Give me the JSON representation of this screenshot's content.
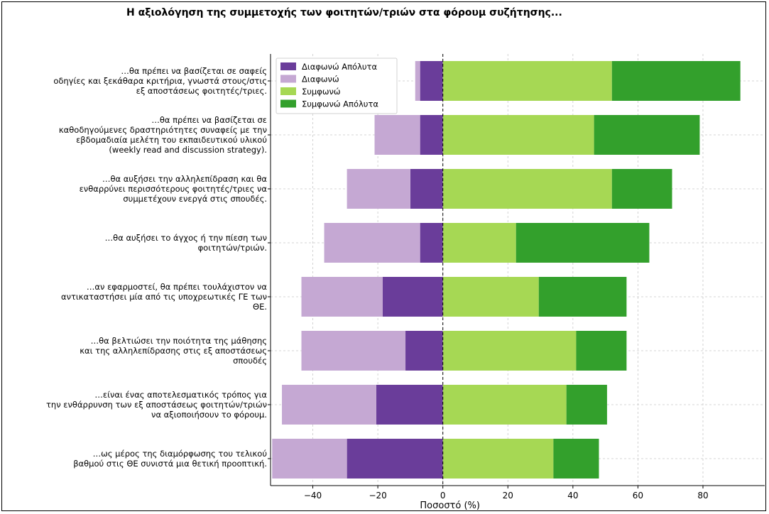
{
  "chart_data": {
    "type": "bar",
    "orientation": "horizontal",
    "stacked": "diverging",
    "title": "Η αξιολόγηση της συμμετοχής των φοιτητών/τριών στα φόρουμ συζήτησης...",
    "xlabel": "Ποσοστό (%)",
    "ylabel": "",
    "xlim": [
      -53,
      99
    ],
    "xticks": [
      -40,
      -20,
      0,
      20,
      40,
      60,
      80
    ],
    "xtick_labels": [
      "−40",
      "−20",
      "0",
      "20",
      "40",
      "60",
      "80"
    ],
    "grid": true,
    "legend_position": "top-left",
    "categories": [
      [
        "…θα πρέπει να   βασίζεται σε σαφείς",
        "οδηγίες και ξεκάθαρα κριτήρια, γνωστά στους/στις",
        "εξ αποστάσεως φοιτητές/τριες."
      ],
      [
        "…θα πρέπει να   βασίζεται σε",
        "καθοδηγούμενες δραστηριότητες συναφείς με την",
        "εβδομαδιαία μελέτη   του εκπαιδευτικού υλικού",
        "(weekly read and discussion strategy)."
      ],
      [
        "…θα αυξήσει   την αλληλεπίδραση και θα",
        "ενθαρρύνει περισσότερους φοιτητές/τριες να",
        "συμμετέχουν ενεργά στις σπουδές."
      ],
      [
        "…θα αυξήσει   το άγχος ή την πίεση των",
        "φοιτητών/τριών."
      ],
      [
        "…αν   εφαρμοστεί, θα πρέπει τουλάχιστον να",
        "αντικαταστήσει μία από τις υποχρεωτικές   ΓΕ των",
        "ΘΕ."
      ],
      [
        "…θα βελτιώσει   την ποιότητα της μάθησης",
        "και της αλληλεπίδρασης στις   εξ αποστάσεως",
        "σπουδές"
      ],
      [
        "…είναι ένας   αποτελεσματικός τρόπος για",
        "την ενθάρρυνση των εξ   αποστάσεως φοιτητών/τριών",
        "να αξιοποιήσουν το φόρουμ."
      ],
      [
        "…ως μέρος της   διαμόρφωσης του τελικού",
        "βαθμού στις ΘΕ συνιστά μια θετική προοπτική."
      ]
    ],
    "series": [
      {
        "name": "Διαφωνώ Απόλυτα",
        "color": "#6a3d9a",
        "values": [
          -7,
          -7,
          -10,
          -7,
          -18.5,
          -11.5,
          -20.5,
          -29.5
        ]
      },
      {
        "name": "Διαφωνώ",
        "color": "#c5a8d3",
        "values": [
          -1.5,
          -14,
          -19.5,
          -29.5,
          -25,
          -32,
          -29,
          -23
        ]
      },
      {
        "name": "Συμφωνώ",
        "color": "#a6d854",
        "values": [
          52,
          46.5,
          52,
          22.5,
          29.5,
          41,
          38,
          34
        ]
      },
      {
        "name": "Συμφωνώ Απόλυτα",
        "color": "#33a02c",
        "values": [
          39.5,
          32.5,
          18.5,
          41,
          27,
          15.5,
          12.5,
          14
        ]
      }
    ]
  }
}
